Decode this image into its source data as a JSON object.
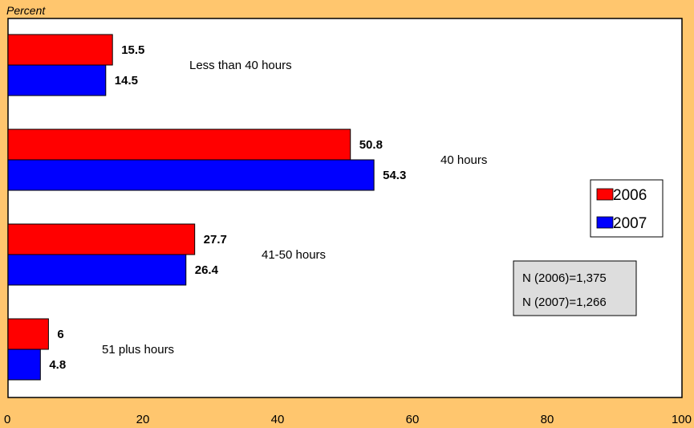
{
  "chart_data": {
    "type": "bar",
    "orientation": "horizontal",
    "ylabel": "Percent",
    "xlim": [
      0,
      100
    ],
    "xticks": [
      0,
      20,
      40,
      60,
      80,
      100
    ],
    "grid": false,
    "legend_position": "right",
    "categories": [
      "Less than 40 hours",
      "40 hours",
      "41-50 hours",
      "51 plus hours"
    ],
    "series": [
      {
        "name": "2006",
        "color": "#FF0000",
        "values": [
          15.5,
          50.8,
          27.7,
          6
        ]
      },
      {
        "name": "2007",
        "color": "#0000FF",
        "values": [
          14.5,
          54.3,
          26.4,
          4.8
        ]
      }
    ],
    "annotations": [
      "N (2006)=1,375",
      "N (2007)=1,266"
    ]
  }
}
